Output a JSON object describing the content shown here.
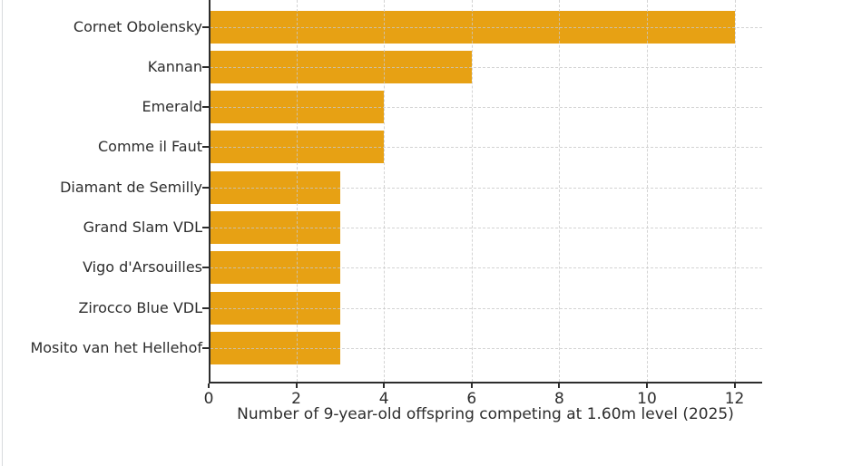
{
  "chart_data": {
    "type": "bar",
    "orientation": "horizontal",
    "title": "",
    "xlabel": "Number of 9-year-old offspring competing at 1.60m level (2025)",
    "ylabel": "",
    "categories": [
      "Cornet Obolensky",
      "Kannan",
      "Emerald",
      "Comme il Faut",
      "Diamant de Semilly",
      "Grand Slam VDL",
      "Vigo d'Arsouilles",
      "Zirocco Blue VDL",
      "Mosito van het Hellehof"
    ],
    "values": [
      12,
      6,
      4,
      4,
      3,
      3,
      3,
      3,
      3
    ],
    "xlim": [
      0,
      12.63
    ],
    "xticks": [
      0,
      2,
      4,
      6,
      8,
      10,
      12
    ],
    "xtick_labels": [
      "0",
      "2",
      "4",
      "6",
      "8",
      "10",
      "12"
    ],
    "grid": true,
    "grid_style": "dashed",
    "legend_position": "none",
    "bar_color": "#E7A114"
  },
  "colors": {
    "bar": "#E7A114",
    "axis": "#2d2d2d",
    "grid": "#cccccc",
    "text": "#2d2d2d",
    "background": "#ffffff"
  }
}
